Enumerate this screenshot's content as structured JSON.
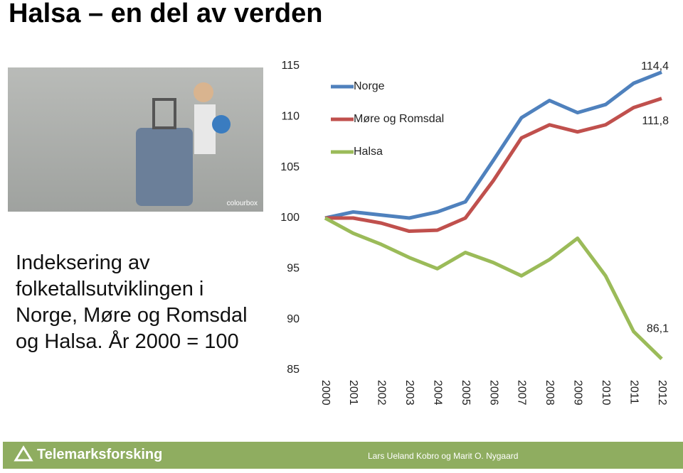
{
  "title": "Halsa – en del av verden",
  "image_watermark": "colourbox",
  "description": "Indeksering av folketallsutviklingen i Norge, Møre og Romsdal og Halsa. År 2000 = 100",
  "footer": {
    "logo": "Telemarksforsking",
    "authors": "Lars Ueland Kobro og Marit O. Nygaard"
  },
  "chart_data": {
    "type": "line",
    "categories": [
      "2000",
      "2001",
      "2002",
      "2003",
      "2004",
      "2005",
      "2006",
      "2007",
      "2008",
      "2009",
      "2010",
      "2011",
      "2012"
    ],
    "series": [
      {
        "name": "Norge",
        "color": "#4f81bd",
        "values": [
          100,
          100.6,
          100.3,
          100.0,
          100.6,
          101.6,
          105.7,
          109.9,
          111.6,
          110.4,
          111.2,
          113.3,
          114.4
        ],
        "value_labels": [
          null,
          null,
          null,
          null,
          null,
          null,
          null,
          null,
          null,
          null,
          null,
          null,
          "114,4"
        ]
      },
      {
        "name": "Møre og Romsdal",
        "color": "#c0504d",
        "values": [
          100,
          100.0,
          99.5,
          98.7,
          98.8,
          100.0,
          103.7,
          107.9,
          109.2,
          108.5,
          109.2,
          110.9,
          111.8
        ],
        "value_labels": [
          null,
          null,
          null,
          null,
          null,
          null,
          null,
          null,
          null,
          null,
          null,
          null,
          "111,8"
        ]
      },
      {
        "name": "Halsa",
        "color": "#9bbb59",
        "values": [
          100,
          98.5,
          97.4,
          96.1,
          95.0,
          96.6,
          95.6,
          94.3,
          95.9,
          98.0,
          94.3,
          88.8,
          86.1
        ],
        "value_labels": [
          null,
          null,
          null,
          null,
          null,
          null,
          null,
          null,
          null,
          null,
          null,
          null,
          "86,1"
        ]
      }
    ],
    "ylim": [
      85,
      115
    ],
    "yticks": [
      85,
      90,
      95,
      100,
      105,
      110,
      115
    ],
    "grid": false,
    "legend": "top-left"
  }
}
